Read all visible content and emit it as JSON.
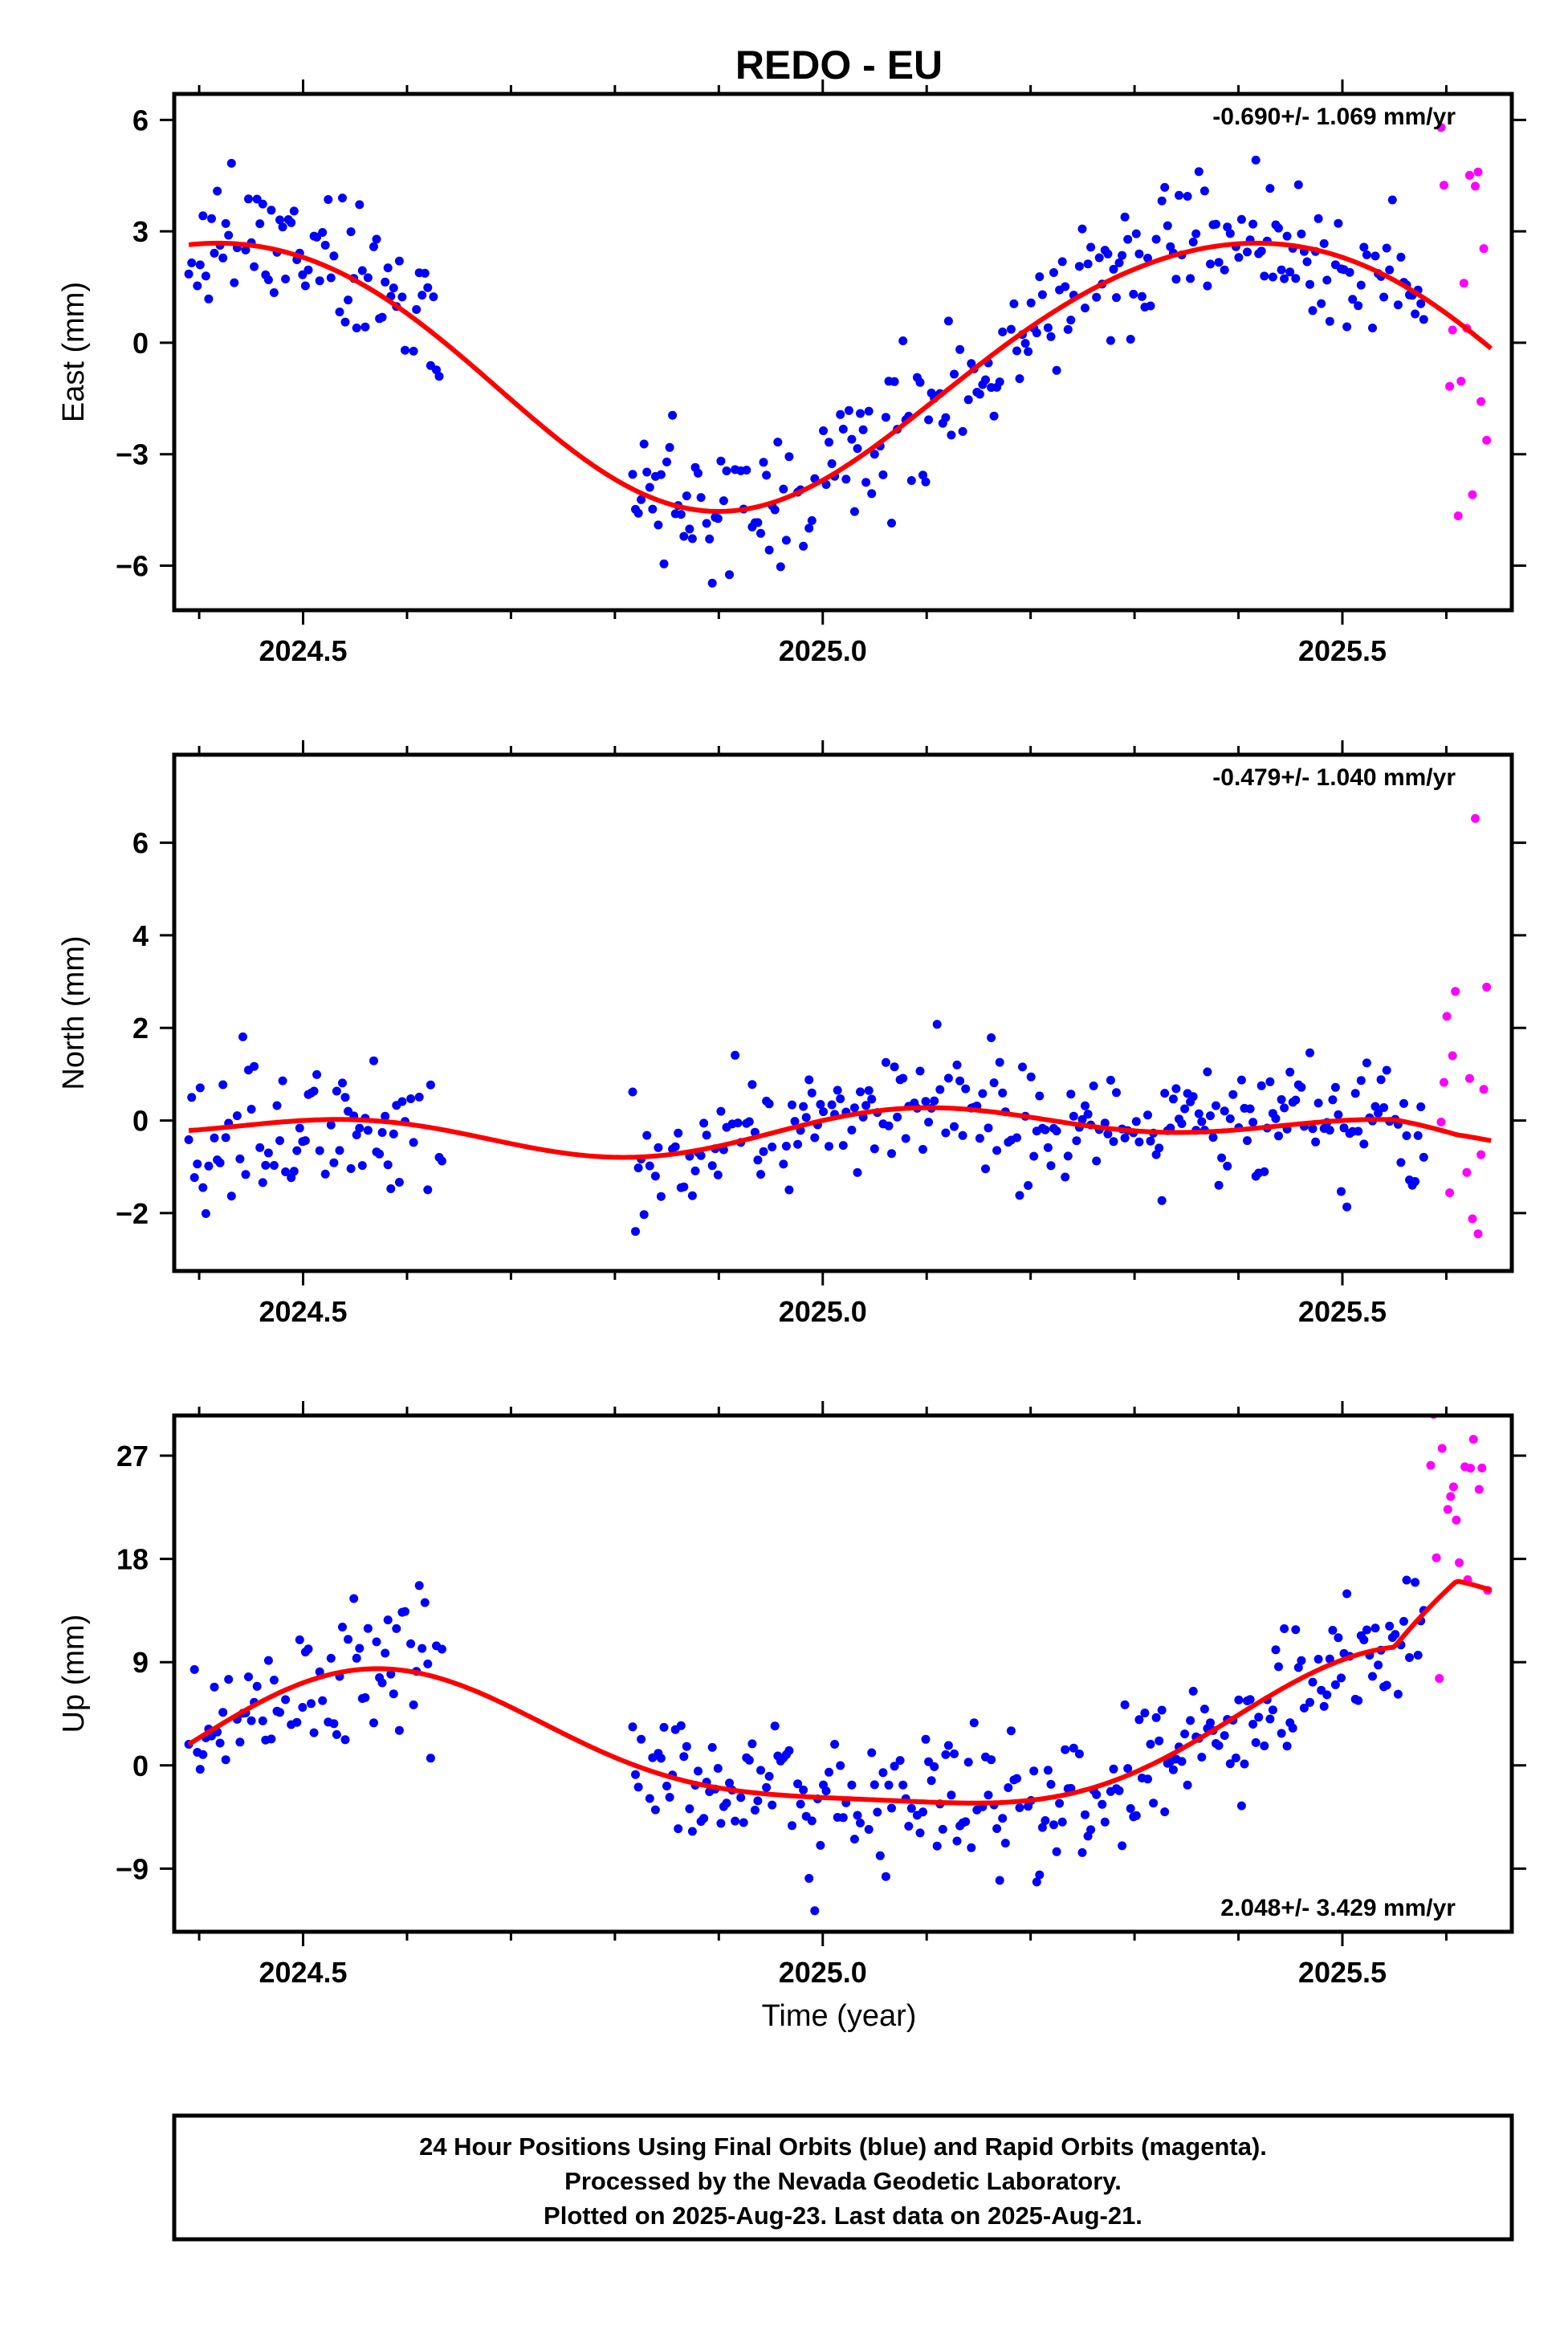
{
  "title": "REDO - EU",
  "xlabel": "Time (year)",
  "footer_lines": [
    "24 Hour Positions Using Final Orbits (blue) and Rapid Orbits (magenta).",
    "Processed by the Nevada Geodetic Laboratory.",
    "Plotted on 2025-Aug-23. Last data on 2025-Aug-21."
  ],
  "colors": {
    "final": "#0000ff",
    "rapid": "#ff00ff",
    "model": "#ff0000",
    "frame": "#000000"
  },
  "chart_data": [
    {
      "type": "scatter",
      "component": "east",
      "ylabel": "East (mm)",
      "rate_label": "-0.690+/- 1.069 mm/yr",
      "xlim": [
        2024.376,
        2025.663
      ],
      "ylim": [
        -7.2,
        6.7
      ],
      "xticks": [
        2024.5,
        2025.0,
        2025.5
      ],
      "xtick_labels": [
        "2024.5",
        "2025.0",
        "2025.5"
      ],
      "yticks": [
        -6,
        -3,
        0,
        3,
        6
      ],
      "ytick_labels": [
        "−6",
        "−3",
        "0",
        "3",
        "6"
      ],
      "grid": false,
      "model_params": {
        "a": -0.7,
        "t0": 2025.0,
        "c1": -3.0,
        "s1": 2.0,
        "c2": 0.0,
        "s2": 0.25,
        "tr": 0.0,
        "ta": 2025.55,
        "ampl": 0.0
      },
      "series": [
        {
          "kind": "final",
          "x0": 2024.39,
          "x1": 2025.58,
          "noise": 0.9,
          "seed": 11,
          "gaps": [
            [
              2024.635,
              2024.815
            ]
          ]
        },
        {
          "kind": "rapid",
          "x0": 2025.595,
          "x1": 2025.64,
          "noise": 3.5,
          "seed": 12,
          "gaps": []
        }
      ]
    },
    {
      "type": "scatter",
      "component": "north",
      "ylabel": "North (mm)",
      "rate_label": "-0.479+/- 1.040 mm/yr",
      "xlim": [
        2024.376,
        2025.663
      ],
      "ylim": [
        -3.25,
        7.9
      ],
      "xticks": [
        2024.5,
        2025.0,
        2025.5
      ],
      "xtick_labels": [
        "2024.5",
        "2025.0",
        "2025.5"
      ],
      "yticks": [
        -2,
        0,
        2,
        4,
        6
      ],
      "ytick_labels": [
        "−2",
        "0",
        "2",
        "4",
        "6"
      ],
      "grid": false,
      "model_params": {
        "a": -0.2,
        "t0": 2025.0,
        "c1": 0.0,
        "s1": 0.3,
        "c2": 0.2,
        "s2": 0.25,
        "tr": 0.0,
        "ta": 2025.55,
        "ampl": -0.2
      },
      "series": [
        {
          "kind": "final",
          "x0": 2024.39,
          "x1": 2025.58,
          "noise": 0.75,
          "seed": 21,
          "gaps": [
            [
              2024.635,
              2024.815
            ]
          ]
        },
        {
          "kind": "rapid",
          "x0": 2025.595,
          "x1": 2025.64,
          "noise": 2.2,
          "seed": 22,
          "gaps": []
        }
      ]
    },
    {
      "type": "scatter",
      "component": "up",
      "ylabel": "Up (mm)",
      "rate_label": "2.048+/- 3.429 mm/yr",
      "xlim": [
        2024.376,
        2025.663
      ],
      "ylim": [
        -14.5,
        30.5
      ],
      "xticks": [
        2024.5,
        2025.0,
        2025.5
      ],
      "xtick_labels": [
        "2024.5",
        "2025.0",
        "2025.5"
      ],
      "yticks": [
        -9,
        0,
        9,
        18,
        27
      ],
      "ytick_labels": [
        "−9",
        "0",
        "9",
        "18",
        "27"
      ],
      "grid": false,
      "model_params": {
        "a": 1.5,
        "t0": 2025.0,
        "c1": -5.5,
        "s1": -3.0,
        "c2": 1.2,
        "s2": 1.0,
        "tr": 2.0,
        "ta": 2025.55,
        "ampl": 6.0
      },
      "series": [
        {
          "kind": "final",
          "x0": 2024.39,
          "x1": 2025.58,
          "noise": 3.0,
          "seed": 31,
          "gaps": [
            [
              2024.635,
              2024.815
            ]
          ]
        },
        {
          "kind": "rapid",
          "x0": 2025.585,
          "x1": 2025.64,
          "noise": 6.0,
          "seed": 32,
          "offset": 10.0,
          "gaps": []
        }
      ]
    }
  ]
}
